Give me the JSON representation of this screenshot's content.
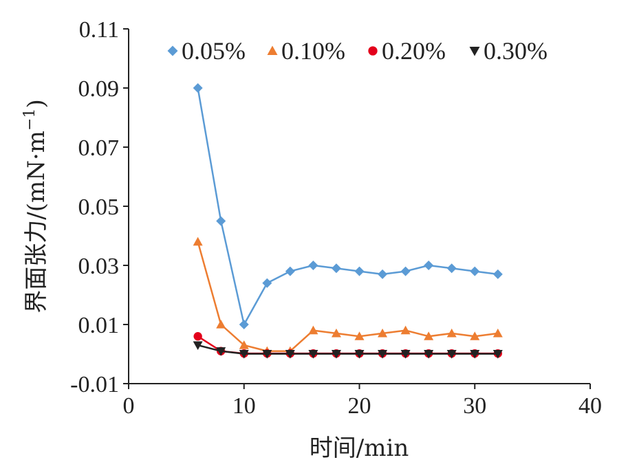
{
  "chart_data": {
    "type": "line",
    "title": "",
    "xlabel": "时间/min",
    "ylabel": {
      "main": "界面张力/(mN·m",
      "superscript": "−1",
      "close": ")"
    },
    "xlim": [
      0,
      40
    ],
    "ylim": [
      -0.01,
      0.11
    ],
    "x_ticks": [
      "0",
      "10",
      "20",
      "30",
      "40"
    ],
    "y_ticks": [
      "0.11",
      "0.09",
      "0.07",
      "0.05",
      "0.03",
      "0.01",
      "-0.01"
    ],
    "grid": false,
    "legend_position": "top",
    "x": [
      6,
      8,
      10,
      12,
      14,
      16,
      18,
      20,
      22,
      24,
      26,
      28,
      30,
      32
    ],
    "series": [
      {
        "name": "0.05%",
        "marker": "diamond",
        "color": "#5b9bd5",
        "values": [
          0.09,
          0.045,
          0.01,
          0.024,
          0.028,
          0.03,
          0.029,
          0.028,
          0.027,
          0.028,
          0.03,
          0.029,
          0.028,
          0.027
        ]
      },
      {
        "name": "0.10%",
        "marker": "triangle-up",
        "color": "#ed7d31",
        "values": [
          0.038,
          0.01,
          0.003,
          0.001,
          0.001,
          0.008,
          0.007,
          0.006,
          0.007,
          0.008,
          0.006,
          0.007,
          0.006,
          0.007
        ]
      },
      {
        "name": "0.20%",
        "marker": "circle",
        "color": "#e3001b",
        "values": [
          0.006,
          0.001,
          0.0002,
          0.0002,
          0.0002,
          0.0002,
          0.0002,
          0.0002,
          0.0002,
          0.0002,
          0.0002,
          0.0002,
          0.0002,
          0.0002
        ]
      },
      {
        "name": "0.30%",
        "marker": "triangle-down",
        "color": "#222222",
        "values": [
          0.003,
          0.001,
          0.0001,
          0.0001,
          0.0001,
          0.0001,
          0.0001,
          0.0001,
          0.0001,
          0.0001,
          0.0001,
          0.0001,
          0.0001,
          0.0001
        ]
      }
    ]
  }
}
